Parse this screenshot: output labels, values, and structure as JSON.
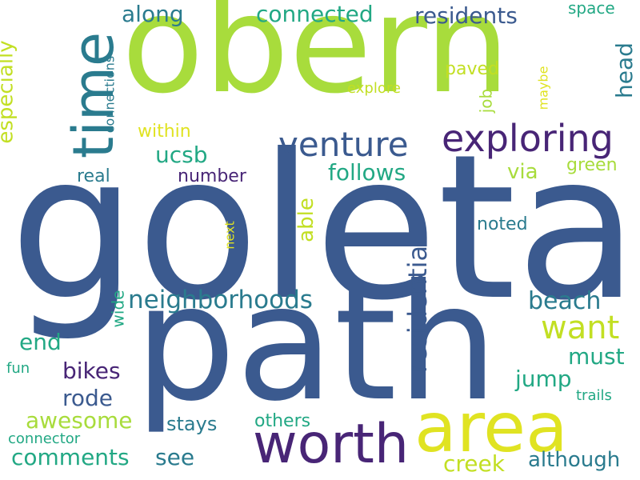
{
  "colors": {
    "background": "#ffffff",
    "navy": "#3b5a8f",
    "lime": "#a8dc3c",
    "teal": "#2a7b8e",
    "green": "#22a884",
    "purple": "#482576",
    "yellow": "#e0e322",
    "olive": "#c2df23"
  },
  "words": [
    {
      "id": "goleta",
      "text": "goleta"
    },
    {
      "id": "oberr",
      "text": "obern"
    },
    {
      "id": "path",
      "text": "path"
    },
    {
      "id": "time",
      "text": "time"
    },
    {
      "id": "area",
      "text": "area"
    },
    {
      "id": "worth",
      "text": "worth"
    },
    {
      "id": "exploring",
      "text": "exploring"
    },
    {
      "id": "venture",
      "text": "venture"
    },
    {
      "id": "neighborhoods",
      "text": "neighborhoods"
    },
    {
      "id": "want",
      "text": "want"
    },
    {
      "id": "residential",
      "text": "residential"
    },
    {
      "id": "connected",
      "text": "connected"
    },
    {
      "id": "residents",
      "text": "residents"
    },
    {
      "id": "along",
      "text": "along"
    },
    {
      "id": "especially",
      "text": "especially"
    },
    {
      "id": "ucsb",
      "text": "ucsb"
    },
    {
      "id": "follows",
      "text": "follows"
    },
    {
      "id": "beach",
      "text": "beach"
    },
    {
      "id": "head",
      "text": "head"
    },
    {
      "id": "must",
      "text": "must"
    },
    {
      "id": "jump",
      "text": "jump"
    },
    {
      "id": "awesome",
      "text": "awesome"
    },
    {
      "id": "comments",
      "text": "comments"
    },
    {
      "id": "bikes",
      "text": "bikes"
    },
    {
      "id": "rode",
      "text": "rode"
    },
    {
      "id": "end",
      "text": "end"
    },
    {
      "id": "see",
      "text": "see"
    },
    {
      "id": "creek",
      "text": "creek"
    },
    {
      "id": "although",
      "text": "although"
    },
    {
      "id": "able",
      "text": "able"
    },
    {
      "id": "via",
      "text": "via"
    },
    {
      "id": "green",
      "text": "green"
    },
    {
      "id": "real",
      "text": "real"
    },
    {
      "id": "number",
      "text": "number"
    },
    {
      "id": "within",
      "text": "within"
    },
    {
      "id": "noted",
      "text": "noted"
    },
    {
      "id": "paved",
      "text": "paved"
    },
    {
      "id": "job",
      "text": "job"
    },
    {
      "id": "explore",
      "text": "explore"
    },
    {
      "id": "space",
      "text": "space"
    },
    {
      "id": "maybe",
      "text": "maybe"
    },
    {
      "id": "connections",
      "text": "connections"
    },
    {
      "id": "next",
      "text": "next"
    },
    {
      "id": "wide",
      "text": "wide"
    },
    {
      "id": "fun",
      "text": "fun"
    },
    {
      "id": "trails",
      "text": "trails"
    },
    {
      "id": "stays",
      "text": "stays"
    },
    {
      "id": "others",
      "text": "others"
    },
    {
      "id": "connector",
      "text": "connector"
    }
  ]
}
